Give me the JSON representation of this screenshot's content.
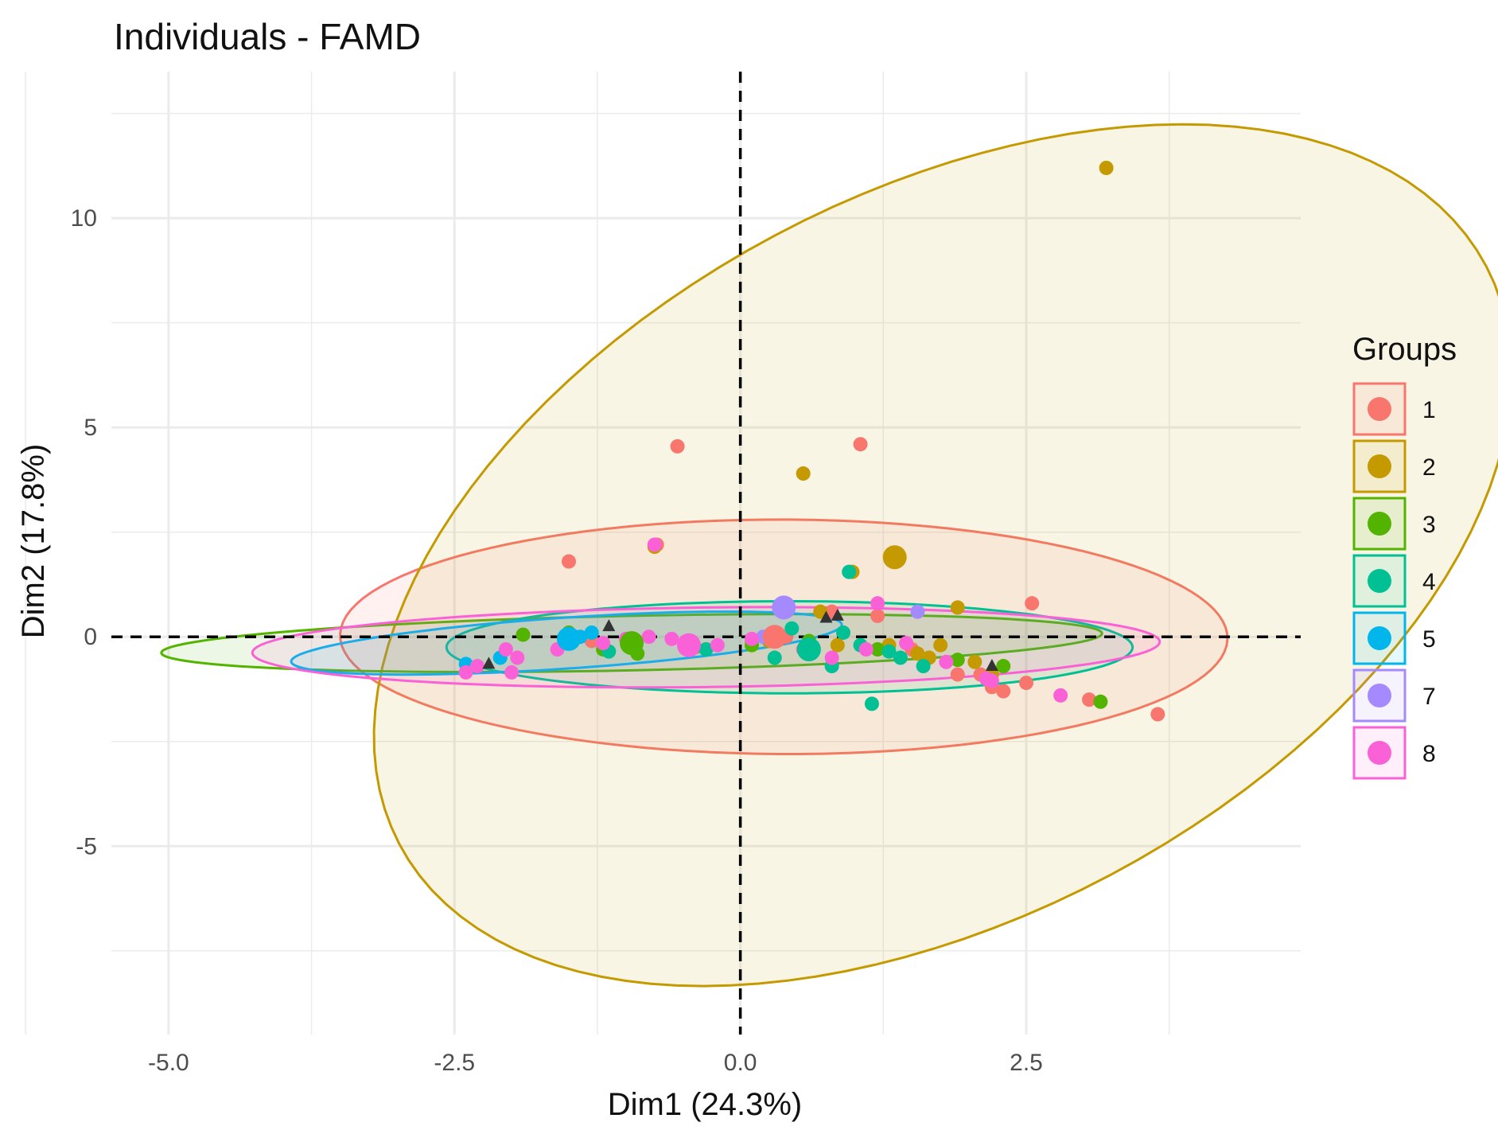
{
  "chart_data": {
    "type": "scatter",
    "title": "Individuals - FAMD",
    "xlabel": "Dim1 (24.3%)",
    "ylabel": "Dim2 (17.8%)",
    "xlim": [
      -5.5,
      4.9
    ],
    "ylim": [
      -9.5,
      13.5
    ],
    "x_ticks": [
      -5.0,
      -2.5,
      0.0,
      2.5
    ],
    "x_tick_labels": [
      "-5.0",
      "-2.5",
      "0.0",
      "2.5"
    ],
    "y_ticks": [
      -5,
      0,
      5,
      10
    ],
    "y_tick_labels": [
      "-5",
      "0",
      "5",
      "10"
    ],
    "reference_lines": {
      "x": 0,
      "y": 0,
      "style": "dashed"
    },
    "grid": true,
    "legend": {
      "title": "Groups",
      "position": "right"
    },
    "series": [
      {
        "name": "1",
        "color": "#F8766D",
        "centroid": [
          0.3,
          0.0
        ],
        "ellipse": {
          "cx": 0.38,
          "cy": 0.0,
          "rx": 3.88,
          "ry": 2.8,
          "angle_deg": -1.0
        },
        "points": [
          [
            -0.55,
            4.55
          ],
          [
            1.05,
            4.6
          ],
          [
            -1.5,
            1.8
          ],
          [
            -0.73,
            2.2
          ],
          [
            2.55,
            0.8
          ],
          [
            1.2,
            0.5
          ],
          [
            0.4,
            0.0
          ],
          [
            0.1,
            -0.1
          ],
          [
            1.9,
            -0.9
          ],
          [
            2.1,
            -0.9
          ],
          [
            2.5,
            -1.1
          ],
          [
            3.05,
            -1.5
          ],
          [
            3.65,
            -1.85
          ],
          [
            2.3,
            -1.3
          ],
          [
            1.5,
            -0.3
          ],
          [
            0.8,
            0.6
          ],
          [
            -1.3,
            -0.1
          ],
          [
            2.2,
            -1.2
          ]
        ]
      },
      {
        "name": "2",
        "color": "#C49A00",
        "centroid": [
          1.35,
          1.9
        ],
        "ellipse": {
          "cx": 1.77,
          "cy": 1.95,
          "rx": 4.4,
          "ry": 10.55,
          "angle_deg": -14.0
        },
        "points": [
          [
            3.2,
            11.2
          ],
          [
            0.55,
            3.9
          ],
          [
            0.98,
            1.55
          ],
          [
            -0.75,
            2.15
          ],
          [
            0.7,
            0.6
          ],
          [
            1.9,
            0.7
          ],
          [
            1.75,
            -0.2
          ],
          [
            2.05,
            -0.6
          ],
          [
            1.3,
            -0.2
          ],
          [
            0.25,
            -0.1
          ],
          [
            2.2,
            -0.9
          ],
          [
            1.55,
            -0.4
          ],
          [
            0.85,
            -0.2
          ],
          [
            1.65,
            -0.5
          ]
        ]
      },
      {
        "name": "3",
        "color": "#53B400",
        "centroid": [
          -0.95,
          -0.15
        ],
        "ellipse": {
          "cx": -0.95,
          "cy": -0.15,
          "rx": 4.12,
          "ry": 0.65,
          "angle_deg": 3.3
        },
        "points": [
          [
            3.15,
            -1.55
          ],
          [
            -1.9,
            0.05
          ],
          [
            -1.2,
            -0.3
          ],
          [
            -0.4,
            -0.25
          ],
          [
            0.6,
            -0.1
          ],
          [
            1.2,
            -0.3
          ],
          [
            1.9,
            -0.55
          ],
          [
            2.3,
            -0.7
          ],
          [
            -0.9,
            -0.4
          ],
          [
            0.1,
            -0.2
          ],
          [
            -1.5,
            0.1
          ]
        ]
      },
      {
        "name": "4",
        "color": "#00C094",
        "centroid": [
          0.6,
          -0.3
        ],
        "ellipse": {
          "cx": 0.43,
          "cy": -0.25,
          "rx": 3.0,
          "ry": 1.1,
          "angle_deg": 0.0
        },
        "points": [
          [
            0.95,
            1.55
          ],
          [
            0.6,
            -0.3
          ],
          [
            1.15,
            -1.6
          ],
          [
            1.4,
            -0.5
          ],
          [
            1.6,
            -0.7
          ],
          [
            0.8,
            -0.7
          ],
          [
            0.3,
            -0.5
          ],
          [
            -0.3,
            -0.3
          ],
          [
            0.9,
            0.1
          ],
          [
            1.05,
            -0.2
          ],
          [
            -1.15,
            -0.35
          ],
          [
            1.3,
            -0.35
          ],
          [
            0.45,
            0.2
          ]
        ]
      },
      {
        "name": "5",
        "color": "#00B6EB",
        "centroid": [
          -1.5,
          -0.05
        ],
        "ellipse": {
          "cx": -1.52,
          "cy": -0.15,
          "rx": 2.45,
          "ry": 0.6,
          "angle_deg": 11.0
        },
        "points": [
          [
            -2.4,
            -0.65
          ],
          [
            -1.5,
            -0.05
          ],
          [
            -1.4,
            0.0
          ],
          [
            -1.3,
            0.1
          ],
          [
            -2.1,
            -0.5
          ]
        ]
      },
      {
        "name": "7",
        "color": "#A58AFF",
        "centroid": [
          0.38,
          0.7
        ],
        "points": [
          [
            1.55,
            0.6
          ],
          [
            0.38,
            0.7
          ],
          [
            0.2,
            0.0
          ]
        ]
      },
      {
        "name": "8",
        "color": "#FB61D7",
        "centroid": [
          -0.45,
          -0.2
        ],
        "ellipse": {
          "cx": -0.3,
          "cy": -0.25,
          "rx": 3.97,
          "ry": 0.95,
          "angle_deg": 2.0
        },
        "points": [
          [
            -2.4,
            -0.85
          ],
          [
            -2.3,
            -0.7
          ],
          [
            -2.05,
            -0.3
          ],
          [
            -1.95,
            -0.5
          ],
          [
            -2.0,
            -0.85
          ],
          [
            -1.6,
            -0.3
          ],
          [
            -1.2,
            -0.15
          ],
          [
            -1.0,
            -0.05
          ],
          [
            -0.75,
            2.2
          ],
          [
            -0.8,
            0.0
          ],
          [
            -0.6,
            -0.05
          ],
          [
            -0.2,
            -0.2
          ],
          [
            0.1,
            -0.05
          ],
          [
            0.3,
            -0.1
          ],
          [
            0.55,
            -0.3
          ],
          [
            0.8,
            -0.5
          ],
          [
            1.1,
            -0.3
          ],
          [
            1.2,
            0.8
          ],
          [
            1.8,
            -0.6
          ],
          [
            2.15,
            -1.0
          ],
          [
            2.8,
            -1.4
          ],
          [
            2.2,
            -1.05
          ],
          [
            1.45,
            -0.15
          ]
        ]
      }
    ],
    "centroid_markers": [
      [
        -1.15,
        0.25
      ],
      [
        0.75,
        0.45
      ],
      [
        2.2,
        -0.7
      ],
      [
        -2.2,
        -0.65
      ],
      [
        0.85,
        0.5
      ]
    ]
  }
}
